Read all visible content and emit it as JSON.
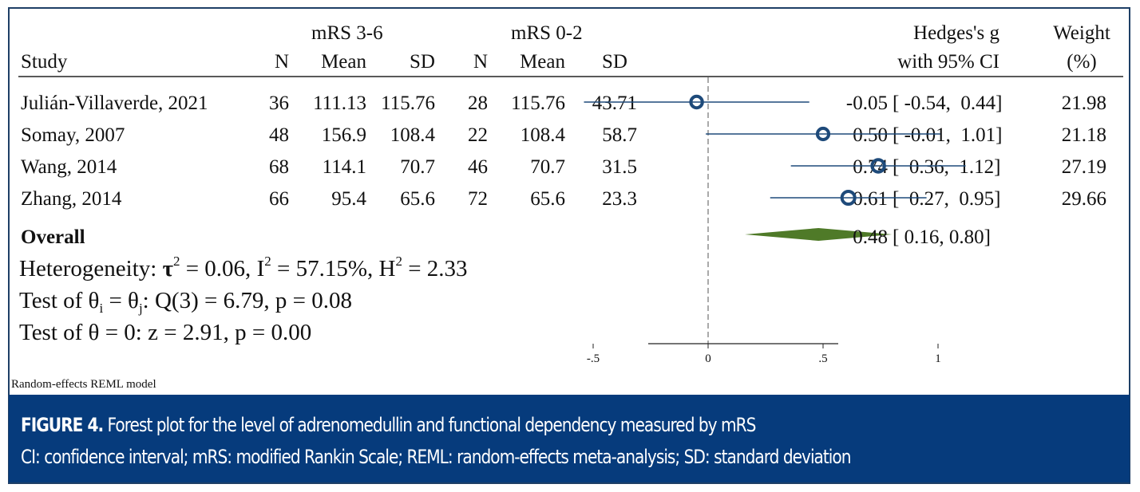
{
  "chart_data": {
    "type": "forest",
    "header": {
      "study": "Study",
      "group1_title": "mRS 3-6",
      "group2_title": "mRS 0-2",
      "n": "N",
      "mean": "Mean",
      "sd": "SD",
      "effect_line1": "Hedges's g",
      "effect_line2": "with 95% CI",
      "weight_line1": "Weight",
      "weight_line2": "(%)"
    },
    "studies": [
      {
        "name": "Julián-Villaverde, 2021",
        "n1": "36",
        "mean1": "111.13",
        "sd1": "115.76",
        "n2": "28",
        "mean2": "115.76",
        "sd2": "43.71",
        "g": -0.05,
        "lo": -0.54,
        "hi": 0.44,
        "g_text": "-0.05",
        "ci_text": "[ -0.54,  0.44]",
        "weight": "21.98"
      },
      {
        "name": "Somay, 2007",
        "n1": "48",
        "mean1": "156.9",
        "sd1": "108.4",
        "n2": "22",
        "mean2": "108.4",
        "sd2": "58.7",
        "g": 0.5,
        "lo": -0.01,
        "hi": 1.01,
        "g_text": "0.50",
        "ci_text": "[ -0.01,  1.01]",
        "weight": "21.18"
      },
      {
        "name": "Wang, 2014",
        "n1": "68",
        "mean1": "114.1",
        "sd1": "70.7",
        "n2": "46",
        "mean2": "70.7",
        "sd2": "31.5",
        "g": 0.74,
        "lo": 0.36,
        "hi": 1.12,
        "g_text": "0.74",
        "ci_text": "[  0.36,  1.12]",
        "weight": "27.19"
      },
      {
        "name": "Zhang, 2014",
        "n1": "66",
        "mean1": "95.4",
        "sd1": "65.6",
        "n2": "72",
        "mean2": "65.6",
        "sd2": "23.3",
        "g": 0.61,
        "lo": 0.27,
        "hi": 0.95,
        "g_text": "0.61",
        "ci_text": "[  0.27,  0.95]",
        "weight": "29.66"
      }
    ],
    "overall": {
      "label": "Overall",
      "g": 0.48,
      "lo": 0.16,
      "hi": 0.8,
      "g_text": "0.48",
      "ci_text": "[ 0.16, 0.80]"
    },
    "heterogeneity": {
      "prefix": "Heterogeneity: ",
      "tau_symbol": "τ",
      "tau_value": " = 0.06, ",
      "i_symbol": "I",
      "i_value": " = 57.15%, ",
      "h_symbol": "H",
      "h_value": " = 2.33",
      "sup": "2"
    },
    "test_homogeneity": {
      "prefix": "Test of θ",
      "sub_i": "i",
      "mid": " = θ",
      "sub_j": "j",
      "suffix": ": Q(3) = 6.79, p = 0.08"
    },
    "test_effect": "Test of θ = 0: z = 2.91, p = 0.00",
    "model_note": "Random-effects REML model",
    "x_axis": {
      "ticks": [
        -0.5,
        0,
        0.5,
        1
      ],
      "tick_labels": [
        "-.5",
        "0",
        ".5",
        "1"
      ],
      "range": [
        -0.54,
        1.12
      ]
    },
    "null_line": 0,
    "colors": {
      "marker": "#1e4a7a",
      "diamond": "#4f7a28",
      "frame": "#1e3f66",
      "caption_bg": "#063b7c"
    }
  },
  "caption": {
    "label": "FIGURE 4.",
    "title": " Forest plot for the level of adrenomedullin and functional dependency measured by mRS",
    "abbreviations": "CI: confidence interval; mRS: modified Rankin Scale; REML: random-effects meta-analysis; SD: standard deviation"
  }
}
